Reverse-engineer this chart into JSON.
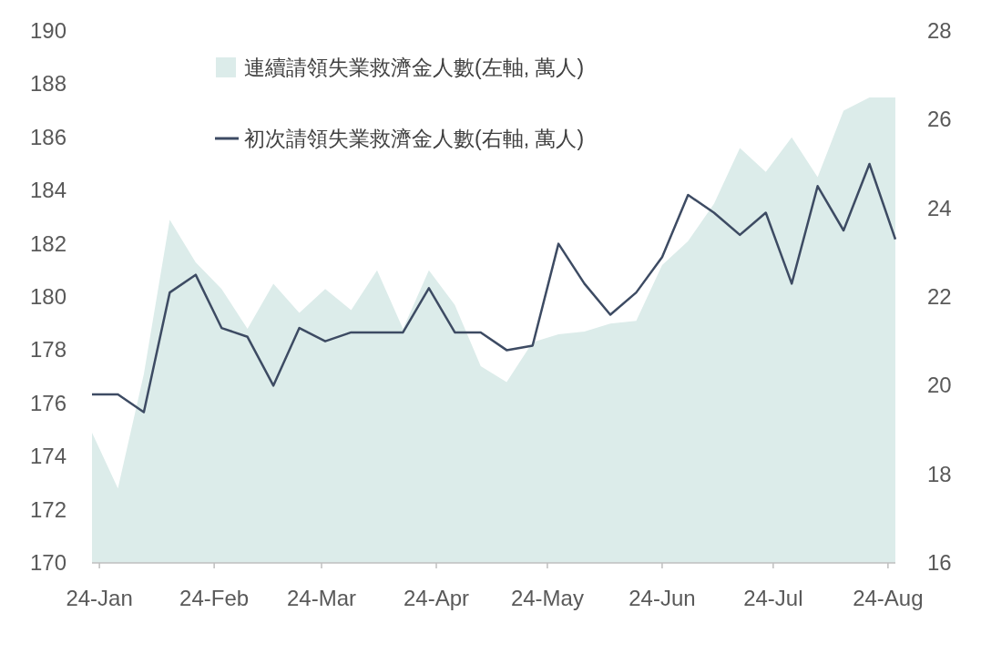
{
  "chart_data": {
    "type": "area",
    "x": [
      "2023-12-30",
      "2024-01-06",
      "2024-01-13",
      "2024-01-20",
      "2024-01-27",
      "2024-02-03",
      "2024-02-10",
      "2024-02-17",
      "2024-02-24",
      "2024-03-02",
      "2024-03-09",
      "2024-03-16",
      "2024-03-23",
      "2024-03-30",
      "2024-04-06",
      "2024-04-13",
      "2024-04-20",
      "2024-04-27",
      "2024-05-04",
      "2024-05-11",
      "2024-05-18",
      "2024-05-25",
      "2024-06-01",
      "2024-06-08",
      "2024-06-15",
      "2024-06-22",
      "2024-06-29",
      "2024-07-06",
      "2024-07-13",
      "2024-07-20",
      "2024-07-27",
      "2024-08-03"
    ],
    "series": [
      {
        "name": "連續請領失業救濟金人數(左軸, 萬人)",
        "color": "#dcecea",
        "values": [
          174.9,
          172.8,
          177.1,
          182.9,
          181.3,
          180.3,
          178.8,
          180.5,
          179.4,
          180.3,
          179.5,
          181.0,
          178.8,
          181.0,
          179.7,
          177.4,
          176.8,
          178.3,
          178.6,
          178.7,
          179.0,
          179.1,
          181.2,
          182.1,
          183.5,
          185.6,
          184.7,
          186.0,
          184.5,
          187.0,
          187.5,
          187.5
        ]
      },
      {
        "name": "初次請領失業救濟金人數(右軸, 萬人)",
        "type": "line",
        "axis": "y2",
        "color": "#3d4b63",
        "values": [
          19.8,
          19.8,
          19.4,
          22.1,
          22.5,
          21.3,
          21.1,
          20.0,
          21.3,
          21.0,
          21.2,
          21.2,
          21.2,
          22.2,
          21.2,
          21.2,
          20.8,
          20.9,
          23.2,
          22.3,
          21.6,
          22.1,
          22.9,
          24.3,
          23.9,
          23.4,
          23.9,
          22.3,
          24.5,
          23.5,
          25.0,
          23.3
        ]
      }
    ],
    "xlim": [
      "2023-12-30",
      "2024-08-03"
    ],
    "xticks": [
      {
        "value": "2024-01-01",
        "label": "24-Jan"
      },
      {
        "value": "2024-02-01",
        "label": "24-Feb"
      },
      {
        "value": "2024-03-01",
        "label": "24-Mar"
      },
      {
        "value": "2024-04-01",
        "label": "24-Apr"
      },
      {
        "value": "2024-05-01",
        "label": "24-May"
      },
      {
        "value": "2024-06-01",
        "label": "24-Jun"
      },
      {
        "value": "2024-07-01",
        "label": "24-Jul"
      },
      {
        "value": "2024-08-01",
        "label": "24-Aug"
      }
    ],
    "ylim": [
      170,
      190
    ],
    "yticks": [
      170,
      172,
      174,
      176,
      178,
      180,
      182,
      184,
      186,
      188,
      190
    ],
    "y2lim": [
      16,
      28
    ],
    "y2ticks": [
      16,
      18,
      20,
      22,
      24,
      26,
      28
    ],
    "grid": false,
    "legend": "top",
    "marker": "none",
    "line_style": "solid"
  }
}
